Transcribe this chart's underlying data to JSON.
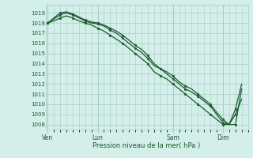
{
  "bg_color": "#d4eeea",
  "grid_color": "#a8ccc8",
  "line_color": "#1a5c2a",
  "xlabel": "Pression niveau de la mer( hPa )",
  "ylim": [
    1007.5,
    1019.8
  ],
  "yticks": [
    1008,
    1009,
    1010,
    1011,
    1012,
    1013,
    1014,
    1015,
    1016,
    1017,
    1018,
    1019
  ],
  "day_positions": [
    0,
    24,
    60,
    84
  ],
  "day_labels": [
    "Ven",
    "Lun",
    "Sam",
    "Dim"
  ],
  "xlim": [
    -1,
    96
  ],
  "series1_x": [
    0,
    3,
    6,
    9,
    12,
    15,
    18,
    21,
    24,
    27,
    30,
    33,
    36,
    39,
    42,
    45,
    48,
    51,
    54,
    57,
    60,
    63,
    66,
    69,
    72,
    75,
    78,
    81,
    84,
    87,
    90,
    93
  ],
  "series1_y": [
    1018.0,
    1018.4,
    1018.8,
    1019.0,
    1018.8,
    1018.5,
    1018.2,
    1018.0,
    1017.9,
    1017.7,
    1017.3,
    1017.0,
    1016.5,
    1016.0,
    1015.5,
    1015.1,
    1014.5,
    1013.8,
    1013.5,
    1013.0,
    1012.5,
    1012.0,
    1011.5,
    1011.2,
    1010.8,
    1010.3,
    1009.8,
    1009.0,
    1008.2,
    1008.0,
    1009.0,
    1010.5
  ],
  "series2_x": [
    0,
    3,
    6,
    9,
    12,
    15,
    18,
    21,
    24,
    27,
    30,
    33,
    36,
    39,
    42,
    45,
    48,
    51,
    54,
    57,
    60,
    63,
    66,
    69,
    72,
    75,
    78,
    81,
    84,
    87,
    90,
    93
  ],
  "series2_y": [
    1018.0,
    1018.5,
    1019.0,
    1019.1,
    1018.9,
    1018.6,
    1018.3,
    1018.1,
    1018.0,
    1017.8,
    1017.5,
    1017.2,
    1016.8,
    1016.3,
    1015.8,
    1015.4,
    1014.8,
    1014.0,
    1013.5,
    1013.2,
    1012.8,
    1012.2,
    1011.8,
    1011.5,
    1011.0,
    1010.5,
    1010.0,
    1009.2,
    1008.5,
    1008.0,
    1009.5,
    1012.0
  ],
  "series3_x": [
    0,
    3,
    6,
    9,
    12,
    15,
    18,
    21,
    24,
    27,
    30,
    33,
    36,
    39,
    42,
    45,
    48,
    51,
    54,
    57,
    60,
    63,
    66,
    69,
    72,
    75,
    78,
    81,
    84,
    87,
    90,
    93
  ],
  "series3_y": [
    1018.0,
    1018.2,
    1018.5,
    1018.7,
    1018.5,
    1018.2,
    1018.0,
    1017.8,
    1017.5,
    1017.2,
    1016.8,
    1016.4,
    1016.0,
    1015.5,
    1015.0,
    1014.5,
    1014.0,
    1013.2,
    1012.8,
    1012.5,
    1012.0,
    1011.5,
    1011.0,
    1010.5,
    1010.0,
    1009.5,
    1009.0,
    1008.5,
    1008.0,
    1008.0,
    1008.0,
    1011.5
  ],
  "marker_every": 2,
  "linewidth": 0.9,
  "markersize": 2.0
}
